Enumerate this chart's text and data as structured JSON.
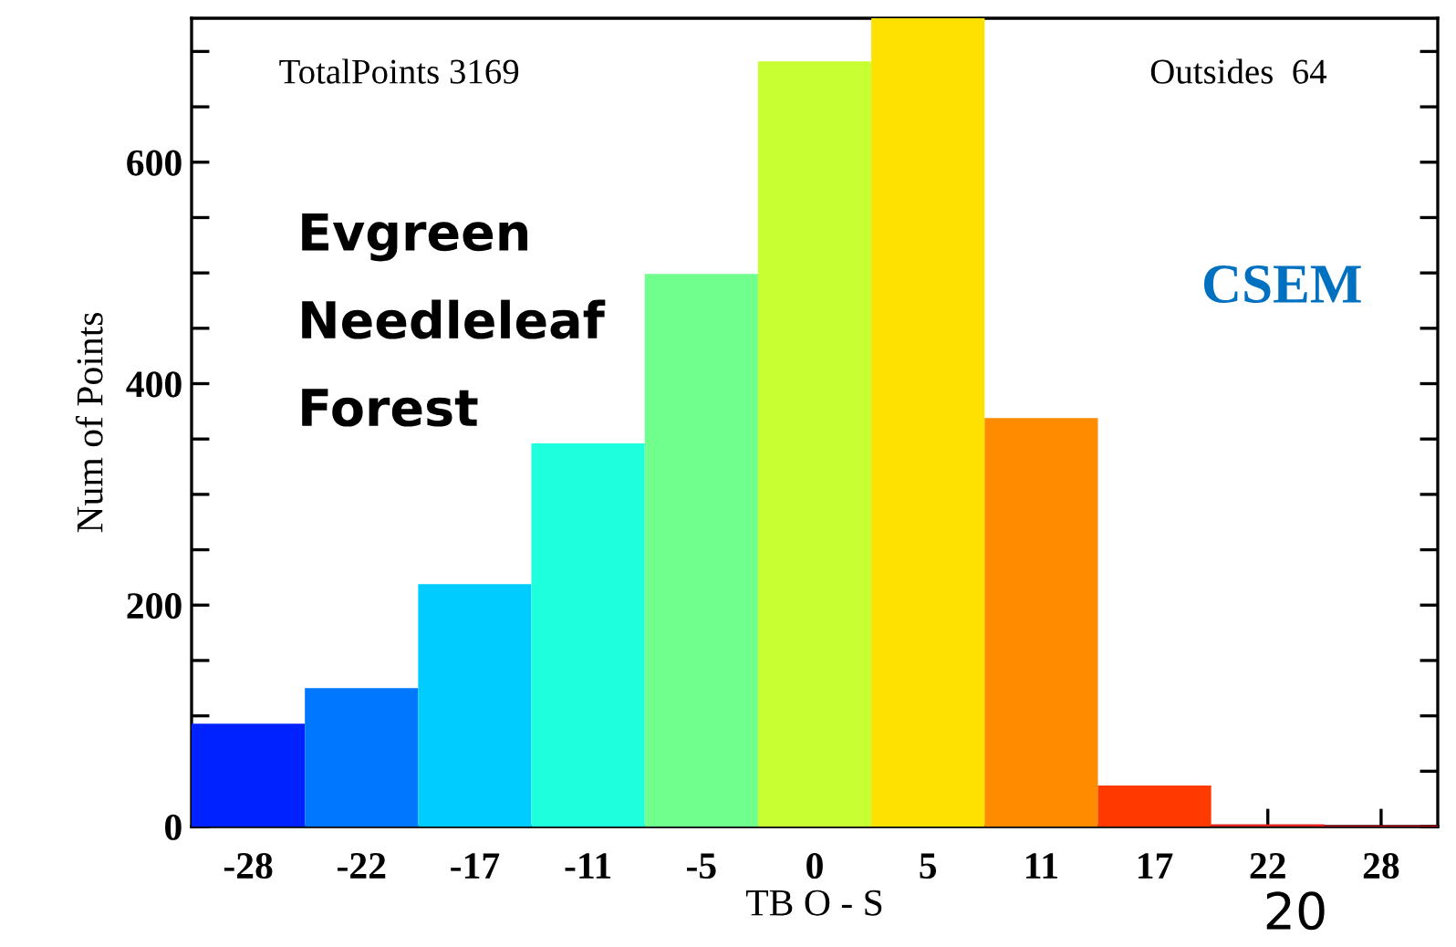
{
  "chart_data": {
    "type": "bar",
    "categories": [
      "-28",
      "-22",
      "-17",
      "-11",
      "-5",
      "0",
      "5",
      "11",
      "17",
      "22",
      "28"
    ],
    "values": [
      93,
      125,
      219,
      346,
      499,
      691,
      730,
      369,
      37,
      2,
      1
    ],
    "colors": [
      "#0022ff",
      "#0077ff",
      "#00ccff",
      "#1effdd",
      "#70ff8c",
      "#c8ff33",
      "#ffe100",
      "#ff8c00",
      "#ff3a00",
      "#e0201a",
      "#c8101a"
    ],
    "xlabel": "TB O - S",
    "ylabel": "Num of Points",
    "ylim": [
      0,
      730
    ],
    "yticks": [
      0,
      {
        "value": 50,
        "label": null
      },
      {
        "value": 100,
        "label": null
      },
      {
        "value": 150,
        "label": null
      },
      200,
      {
        "value": 250,
        "label": null
      },
      {
        "value": 300,
        "label": null
      },
      {
        "value": 350,
        "label": null
      },
      400,
      {
        "value": 450,
        "label": null
      },
      {
        "value": 500,
        "label": null
      },
      {
        "value": 550,
        "label": null
      },
      600,
      {
        "value": 650,
        "label": null
      },
      {
        "value": 700,
        "label": null
      }
    ],
    "annotations": [
      "TotalPoints 3169",
      "Outsides  64",
      "Evgreen\nNeedleleaf\nForest",
      "CSEM",
      "20"
    ],
    "grid": false,
    "legend": false
  }
}
